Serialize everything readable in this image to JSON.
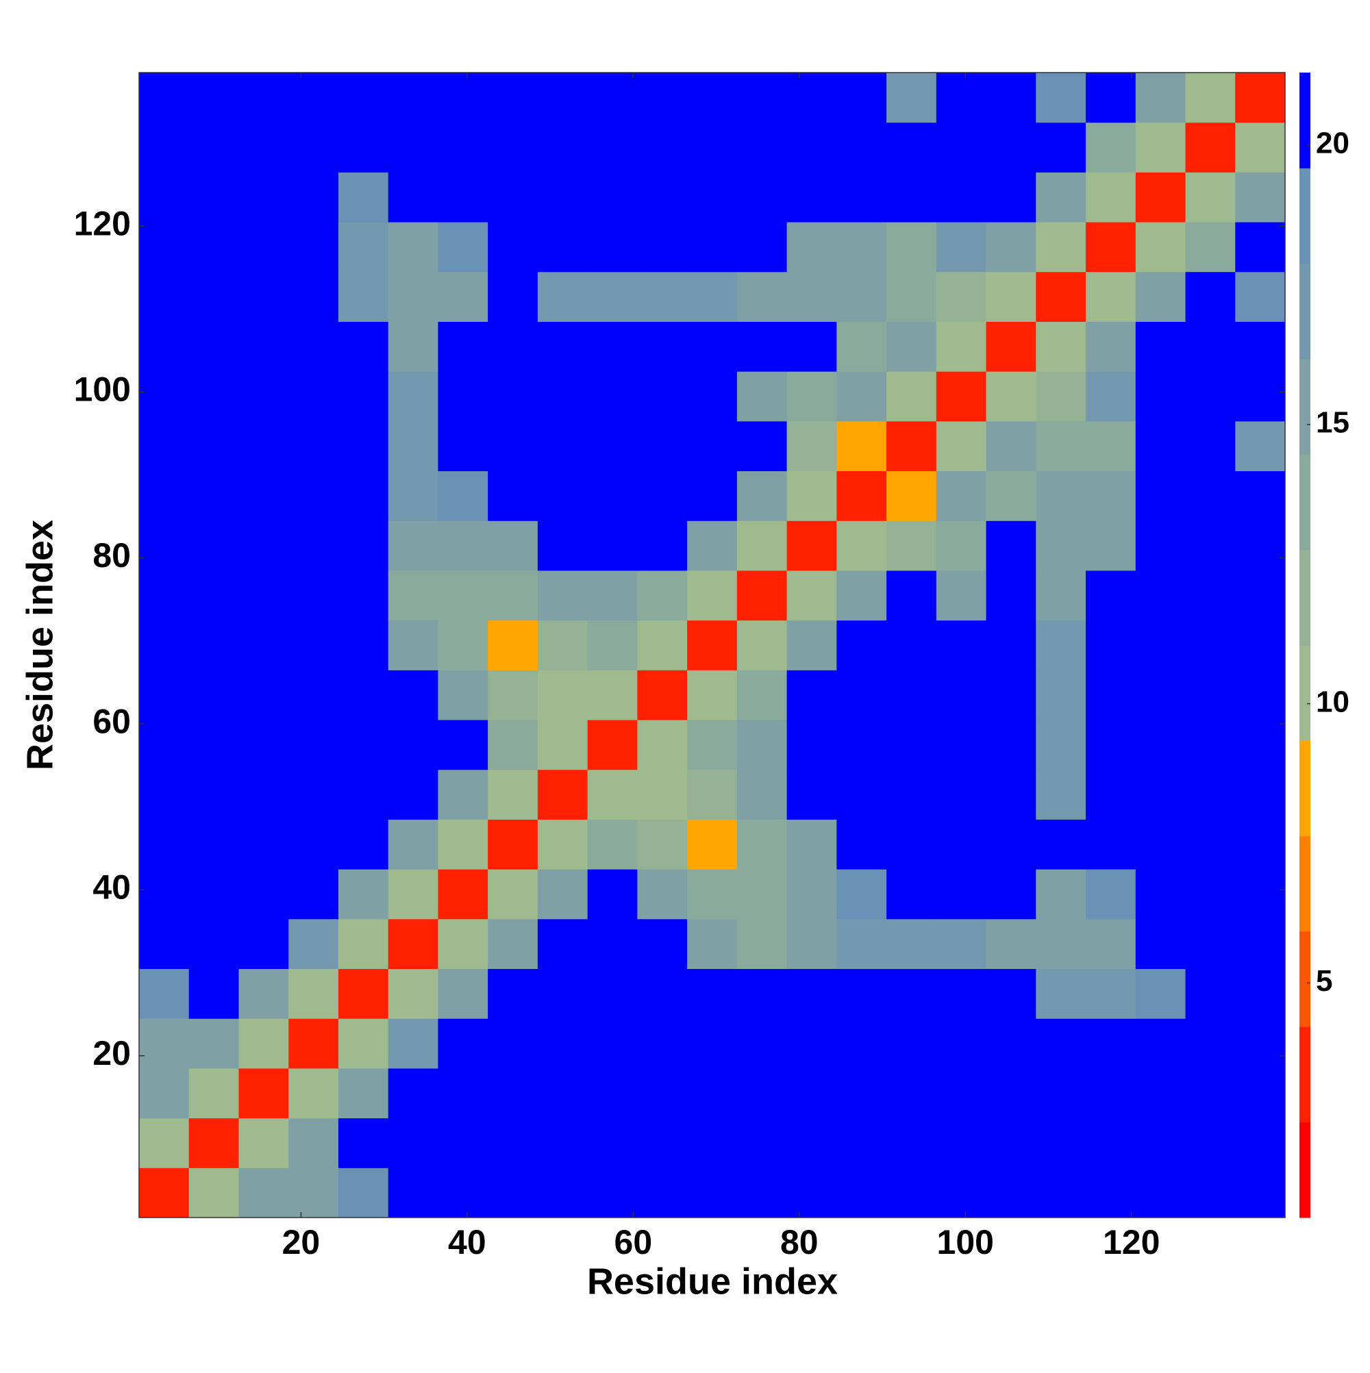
{
  "chart_data": {
    "type": "heatmap",
    "xlabel": "Residue index",
    "ylabel": "Residue index",
    "x": [
      3.5,
      9.5,
      15.5,
      21.5,
      27.5,
      33.5,
      39.5,
      45.5,
      51.5,
      57.5,
      63.5,
      69.5,
      75.5,
      81.5,
      87.5,
      93.5,
      99.5,
      105.5,
      111.5,
      117.5,
      123.5,
      129.5,
      135.5
    ],
    "y": [
      3.5,
      9.5,
      15.5,
      21.5,
      27.5,
      33.5,
      39.5,
      45.5,
      51.5,
      57.5,
      63.5,
      69.5,
      75.5,
      81.5,
      87.5,
      93.5,
      99.5,
      105.5,
      111.5,
      117.5,
      123.5,
      129.5,
      135.5
    ],
    "z": [
      [
        4,
        11,
        15,
        16,
        19,
        21,
        21,
        21,
        21,
        21,
        21,
        21,
        21,
        21,
        21,
        21,
        21,
        21,
        21,
        21,
        21,
        21,
        21
      ],
      [
        11,
        4,
        11,
        15,
        21,
        21,
        21,
        21,
        21,
        21,
        21,
        21,
        21,
        21,
        21,
        21,
        21,
        21,
        21,
        21,
        21,
        21,
        21
      ],
      [
        15,
        11,
        4,
        11,
        16,
        21,
        21,
        21,
        21,
        21,
        21,
        21,
        21,
        21,
        21,
        21,
        21,
        21,
        21,
        21,
        21,
        21,
        21
      ],
      [
        16,
        15,
        11,
        4,
        11,
        17,
        21,
        21,
        21,
        21,
        21,
        21,
        21,
        21,
        21,
        21,
        21,
        21,
        21,
        21,
        21,
        21,
        21
      ],
      [
        19,
        21,
        16,
        11,
        4,
        11,
        16,
        21,
        21,
        21,
        21,
        21,
        21,
        21,
        21,
        21,
        21,
        21,
        17,
        17,
        18,
        21,
        21
      ],
      [
        21,
        21,
        21,
        17,
        11,
        4,
        11,
        16,
        21,
        21,
        21,
        16,
        14,
        15,
        17,
        17,
        17,
        16,
        15,
        16,
        21,
        21,
        21
      ],
      [
        21,
        21,
        21,
        21,
        16,
        11,
        4,
        11,
        16,
        21,
        16,
        13,
        13,
        15,
        18,
        21,
        21,
        21,
        16,
        18,
        21,
        21,
        21
      ],
      [
        21,
        21,
        21,
        21,
        21,
        16,
        11,
        4,
        11,
        13,
        12,
        9,
        14,
        16,
        21,
        21,
        21,
        21,
        21,
        21,
        21,
        21,
        21
      ],
      [
        21,
        21,
        21,
        21,
        21,
        21,
        16,
        11,
        4,
        11,
        10,
        12,
        15,
        21,
        21,
        21,
        21,
        21,
        17,
        21,
        21,
        21,
        21
      ],
      [
        21,
        21,
        21,
        21,
        21,
        21,
        21,
        13,
        11,
        4,
        11,
        13,
        16,
        21,
        21,
        21,
        21,
        21,
        17,
        21,
        21,
        21,
        21
      ],
      [
        21,
        21,
        21,
        21,
        21,
        21,
        16,
        12,
        10,
        11,
        4,
        11,
        14,
        21,
        21,
        21,
        21,
        21,
        17,
        21,
        21,
        21,
        21
      ],
      [
        21,
        21,
        21,
        21,
        21,
        16,
        13,
        9,
        12,
        13,
        11,
        4,
        11,
        16,
        21,
        21,
        21,
        21,
        17,
        21,
        21,
        21,
        21
      ],
      [
        21,
        21,
        21,
        21,
        21,
        14,
        13,
        14,
        15,
        16,
        14,
        11,
        4,
        11,
        16,
        21,
        16,
        21,
        16,
        21,
        21,
        21,
        21
      ],
      [
        21,
        21,
        21,
        21,
        21,
        15,
        15,
        16,
        21,
        21,
        21,
        16,
        11,
        4,
        11,
        12,
        14,
        21,
        16,
        15,
        21,
        21,
        21
      ],
      [
        21,
        21,
        21,
        21,
        21,
        17,
        18,
        21,
        21,
        21,
        21,
        21,
        16,
        11,
        4,
        8,
        16,
        14,
        15,
        16,
        21,
        21,
        21
      ],
      [
        21,
        21,
        21,
        21,
        21,
        17,
        21,
        21,
        21,
        21,
        21,
        21,
        21,
        12,
        8,
        4,
        11,
        16,
        14,
        14,
        21,
        21,
        17
      ],
      [
        21,
        21,
        21,
        21,
        21,
        17,
        21,
        21,
        21,
        21,
        21,
        21,
        16,
        14,
        16,
        11,
        4,
        11,
        12,
        17,
        21,
        21,
        21
      ],
      [
        21,
        21,
        21,
        21,
        21,
        16,
        21,
        21,
        21,
        21,
        21,
        21,
        21,
        21,
        14,
        16,
        11,
        4,
        11,
        16,
        21,
        21,
        21
      ],
      [
        21,
        21,
        21,
        21,
        17,
        15,
        16,
        21,
        17,
        17,
        17,
        17,
        16,
        16,
        15,
        14,
        12,
        11,
        4,
        11,
        16,
        21,
        18
      ],
      [
        21,
        21,
        21,
        21,
        17,
        16,
        18,
        21,
        21,
        21,
        21,
        21,
        21,
        15,
        16,
        14,
        17,
        16,
        11,
        4,
        11,
        13,
        21
      ],
      [
        21,
        21,
        21,
        21,
        18,
        21,
        21,
        21,
        21,
        21,
        21,
        21,
        21,
        21,
        21,
        21,
        21,
        21,
        16,
        11,
        4,
        11,
        16
      ],
      [
        21,
        21,
        21,
        21,
        21,
        21,
        21,
        21,
        21,
        21,
        21,
        21,
        21,
        21,
        21,
        21,
        21,
        21,
        21,
        13,
        11,
        4,
        11
      ],
      [
        21,
        21,
        21,
        21,
        21,
        21,
        21,
        21,
        21,
        21,
        21,
        21,
        21,
        21,
        21,
        17,
        21,
        21,
        18,
        21,
        16,
        11,
        4
      ]
    ],
    "xlim": [
      0.5,
      138.5
    ],
    "ylim": [
      0.5,
      138.5
    ],
    "xticks": [
      20,
      40,
      60,
      80,
      100,
      120
    ],
    "yticks": [
      20,
      40,
      60,
      80,
      100,
      120
    ],
    "clim": [
      0.8,
      21.3
    ],
    "cticks": [
      5,
      10,
      15,
      20
    ],
    "colormap": [
      "#ff0000",
      "#ff2000",
      "#ff5500",
      "#ff8000",
      "#ffa500",
      "#9fba8e",
      "#95b394",
      "#8aab9c",
      "#7fa1a6",
      "#7499ae",
      "#6a91b6",
      "#0000ff"
    ]
  }
}
